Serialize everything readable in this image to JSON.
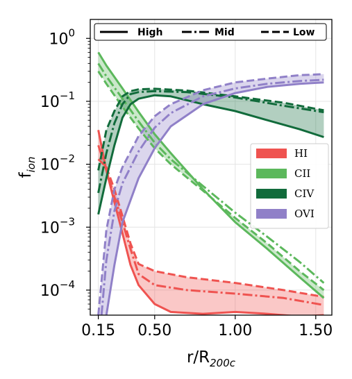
{
  "chart_data": {
    "type": "line",
    "xlabel": "r/R",
    "xlabel_sub": "200c",
    "ylabel": "f",
    "ylabel_sub": "ion",
    "y_scale": "log",
    "xlim": [
      0.1,
      1.6
    ],
    "ylim": [
      4e-05,
      2
    ],
    "x_ticks": [
      {
        "value": 0.15,
        "label": "0.15"
      },
      {
        "value": 0.5,
        "label": "0.50"
      },
      {
        "value": 1.0,
        "label": "1.00"
      },
      {
        "value": 1.5,
        "label": "1.50"
      }
    ],
    "y_ticks": [
      {
        "value": 1,
        "base": "10",
        "exp": "0"
      },
      {
        "value": 0.1,
        "base": "10",
        "exp": "−1"
      },
      {
        "value": 0.01,
        "base": "10",
        "exp": "−2"
      },
      {
        "value": 0.001,
        "base": "10",
        "exp": "−3"
      },
      {
        "value": 0.0001,
        "base": "10",
        "exp": "−4"
      }
    ],
    "grid": true,
    "legend_styles": [
      {
        "label": "High",
        "style": "solid"
      },
      {
        "label": "Mid",
        "style": "dashdot"
      },
      {
        "label": "Low",
        "style": "dashed"
      }
    ],
    "legend_ions": [
      "HI",
      "CII",
      "CIV",
      "OVI"
    ],
    "series": [
      {
        "name": "HI",
        "color": "#ef5350",
        "high": [
          [
            0.15,
            0.035
          ],
          [
            0.2,
            0.008
          ],
          [
            0.25,
            0.0025
          ],
          [
            0.3,
            0.0008
          ],
          [
            0.35,
            0.00025
          ],
          [
            0.4,
            0.00012
          ],
          [
            0.5,
            6e-05
          ],
          [
            0.6,
            4.5e-05
          ],
          [
            0.8,
            4.2e-05
          ],
          [
            1.0,
            4.5e-05
          ],
          [
            1.2,
            4.2e-05
          ],
          [
            1.4,
            3.8e-05
          ],
          [
            1.55,
            4e-05
          ]
        ],
        "mid": [
          [
            0.15,
            0.02
          ],
          [
            0.2,
            0.008
          ],
          [
            0.25,
            0.003
          ],
          [
            0.3,
            0.0012
          ],
          [
            0.35,
            0.00045
          ],
          [
            0.4,
            0.00018
          ],
          [
            0.5,
            0.00012
          ],
          [
            0.7,
            0.0001
          ],
          [
            1.0,
            8.8e-05
          ],
          [
            1.3,
            7.5e-05
          ],
          [
            1.55,
            5.8e-05
          ]
        ],
        "low": [
          [
            0.15,
            0.012
          ],
          [
            0.2,
            0.009
          ],
          [
            0.25,
            0.004
          ],
          [
            0.3,
            0.0015
          ],
          [
            0.35,
            0.00055
          ],
          [
            0.4,
            0.00026
          ],
          [
            0.5,
            0.0002
          ],
          [
            0.7,
            0.00016
          ],
          [
            1.0,
            0.00013
          ],
          [
            1.3,
            0.0001
          ],
          [
            1.55,
            7.8e-05
          ]
        ]
      },
      {
        "name": "CII",
        "color": "#5cb85c",
        "high": [
          [
            0.15,
            0.6
          ],
          [
            0.2,
            0.37
          ],
          [
            0.3,
            0.16
          ],
          [
            0.4,
            0.068
          ],
          [
            0.5,
            0.03
          ],
          [
            0.6,
            0.015
          ],
          [
            0.8,
            0.004
          ],
          [
            1.0,
            0.0012
          ],
          [
            1.2,
            0.00045
          ],
          [
            1.4,
            0.00016
          ],
          [
            1.55,
            7.5e-05
          ]
        ],
        "mid": [
          [
            0.15,
            0.4
          ],
          [
            0.2,
            0.25
          ],
          [
            0.3,
            0.11
          ],
          [
            0.4,
            0.048
          ],
          [
            0.5,
            0.022
          ],
          [
            0.6,
            0.012
          ],
          [
            0.8,
            0.0045
          ],
          [
            1.0,
            0.0017
          ],
          [
            1.2,
            0.0007
          ],
          [
            1.4,
            0.00028
          ],
          [
            1.55,
            0.00013
          ]
        ],
        "low": [
          [
            0.15,
            0.3
          ],
          [
            0.2,
            0.19
          ],
          [
            0.3,
            0.082
          ],
          [
            0.4,
            0.037
          ],
          [
            0.5,
            0.018
          ],
          [
            0.6,
            0.01
          ],
          [
            0.8,
            0.0038
          ],
          [
            1.0,
            0.0014
          ],
          [
            1.2,
            0.00055
          ],
          [
            1.4,
            0.0002
          ],
          [
            1.55,
            0.0001
          ]
        ]
      },
      {
        "name": "CIV",
        "color": "#116b3b",
        "high": [
          [
            0.15,
            0.0016
          ],
          [
            0.2,
            0.006
          ],
          [
            0.25,
            0.02
          ],
          [
            0.3,
            0.055
          ],
          [
            0.35,
            0.09
          ],
          [
            0.4,
            0.11
          ],
          [
            0.5,
            0.125
          ],
          [
            0.6,
            0.12
          ],
          [
            0.8,
            0.09
          ],
          [
            1.0,
            0.07
          ],
          [
            1.2,
            0.05
          ],
          [
            1.4,
            0.036
          ],
          [
            1.55,
            0.027
          ]
        ],
        "mid": [
          [
            0.15,
            0.0035
          ],
          [
            0.2,
            0.015
          ],
          [
            0.25,
            0.045
          ],
          [
            0.3,
            0.09
          ],
          [
            0.35,
            0.13
          ],
          [
            0.4,
            0.14
          ],
          [
            0.5,
            0.145
          ],
          [
            0.7,
            0.14
          ],
          [
            1.0,
            0.115
          ],
          [
            1.3,
            0.085
          ],
          [
            1.55,
            0.067
          ]
        ],
        "low": [
          [
            0.15,
            0.008
          ],
          [
            0.2,
            0.035
          ],
          [
            0.25,
            0.07
          ],
          [
            0.3,
            0.12
          ],
          [
            0.35,
            0.145
          ],
          [
            0.4,
            0.155
          ],
          [
            0.5,
            0.158
          ],
          [
            0.7,
            0.148
          ],
          [
            1.0,
            0.12
          ],
          [
            1.3,
            0.095
          ],
          [
            1.55,
            0.072
          ]
        ]
      },
      {
        "name": "OVI",
        "color": "#9080c8",
        "high": [
          [
            0.2,
            4e-05
          ],
          [
            0.25,
            0.00025
          ],
          [
            0.3,
            0.0012
          ],
          [
            0.4,
            0.006
          ],
          [
            0.5,
            0.018
          ],
          [
            0.6,
            0.04
          ],
          [
            0.8,
            0.09
          ],
          [
            1.0,
            0.135
          ],
          [
            1.2,
            0.17
          ],
          [
            1.4,
            0.19
          ],
          [
            1.55,
            0.2
          ]
        ],
        "mid": [
          [
            0.17,
            4e-05
          ],
          [
            0.2,
            0.0003
          ],
          [
            0.25,
            0.0018
          ],
          [
            0.3,
            0.005
          ],
          [
            0.4,
            0.016
          ],
          [
            0.5,
            0.038
          ],
          [
            0.6,
            0.065
          ],
          [
            0.8,
            0.12
          ],
          [
            1.0,
            0.16
          ],
          [
            1.2,
            0.19
          ],
          [
            1.4,
            0.21
          ],
          [
            1.55,
            0.22
          ]
        ],
        "low": [
          [
            0.15,
            4e-05
          ],
          [
            0.2,
            0.0009
          ],
          [
            0.25,
            0.004
          ],
          [
            0.3,
            0.009
          ],
          [
            0.4,
            0.028
          ],
          [
            0.5,
            0.058
          ],
          [
            0.6,
            0.09
          ],
          [
            0.8,
            0.15
          ],
          [
            1.0,
            0.2
          ],
          [
            1.2,
            0.23
          ],
          [
            1.4,
            0.26
          ],
          [
            1.55,
            0.27
          ]
        ]
      }
    ]
  }
}
